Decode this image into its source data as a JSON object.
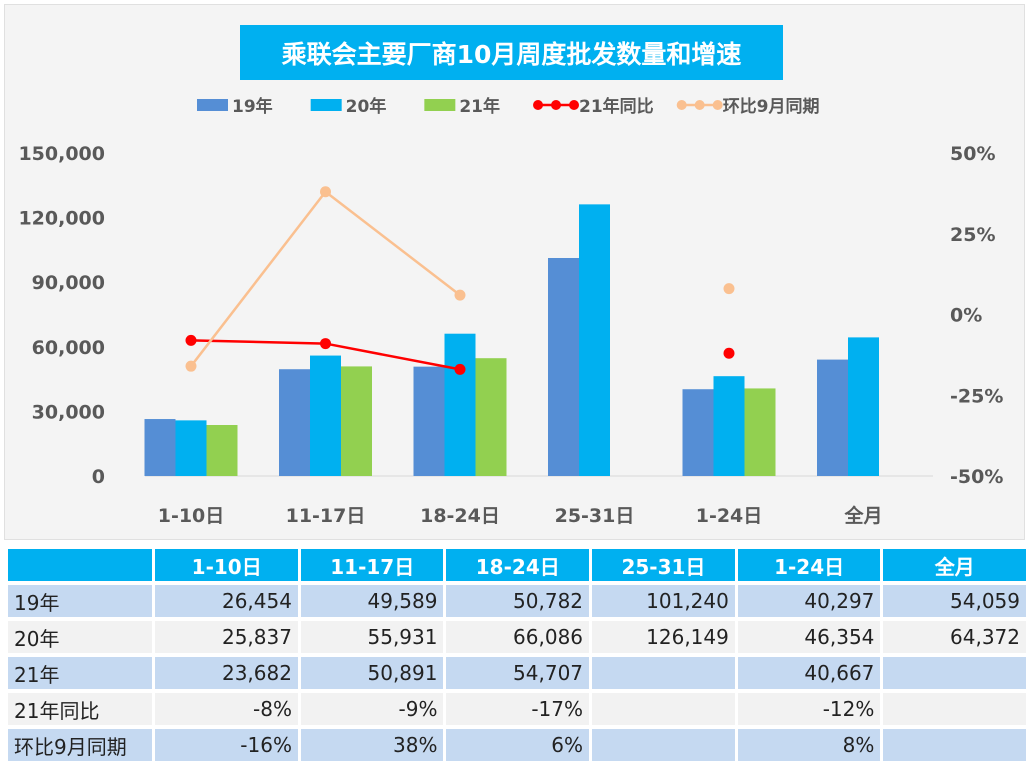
{
  "chart_data": {
    "type": "bar",
    "title": "乘联会主要厂商10月周度批发数量和增速",
    "categories": [
      "1-10日",
      "11-17日",
      "18-24日",
      "25-31日",
      "1-24日",
      "全月"
    ],
    "series": [
      {
        "name": "19年",
        "kind": "bar",
        "axis": "left",
        "color": "#558ed5",
        "values": [
          26454,
          49589,
          50782,
          101240,
          40297,
          54059
        ]
      },
      {
        "name": "20年",
        "kind": "bar",
        "axis": "left",
        "color": "#00b0f0",
        "values": [
          25837,
          55931,
          66086,
          126149,
          46354,
          64372
        ]
      },
      {
        "name": "21年",
        "kind": "bar",
        "axis": "left",
        "color": "#92d050",
        "values": [
          23682,
          50891,
          54707,
          null,
          40667,
          null
        ]
      },
      {
        "name": "21年同比",
        "kind": "line",
        "axis": "right",
        "color": "#ff0000",
        "values": [
          -8,
          -9,
          -17,
          null,
          -12,
          null
        ],
        "unit": "%"
      },
      {
        "name": "环比9月同期",
        "kind": "line",
        "axis": "right",
        "color": "#fac090",
        "values": [
          -16,
          38,
          6,
          null,
          8,
          null
        ],
        "unit": "%"
      }
    ],
    "left_axis": {
      "range": [
        0,
        150000
      ],
      "ticks": [
        "0",
        "30,000",
        "60,000",
        "90,000",
        "120,000",
        "150,000"
      ]
    },
    "right_axis": {
      "range": [
        -50,
        50
      ],
      "ticks": [
        "-50%",
        "-25%",
        "0%",
        "25%",
        "50%"
      ]
    },
    "grid": false,
    "legend": "top"
  },
  "table": {
    "headers": [
      "",
      "1-10日",
      "11-17日",
      "18-24日",
      "25-31日",
      "1-24日",
      "全月"
    ],
    "rows": [
      [
        "19年",
        "26,454",
        "49,589",
        "50,782",
        "101,240",
        "40,297",
        "54,059"
      ],
      [
        "20年",
        "25,837",
        "55,931",
        "66,086",
        "126,149",
        "46,354",
        "64,372"
      ],
      [
        "21年",
        "23,682",
        "50,891",
        "54,707",
        "",
        "40,667",
        ""
      ],
      [
        "21年同比",
        "-8%",
        "-9%",
        "-17%",
        "",
        "-12%",
        ""
      ],
      [
        "环比9月同期",
        "-16%",
        "38%",
        "6%",
        "",
        "8%",
        ""
      ]
    ]
  }
}
